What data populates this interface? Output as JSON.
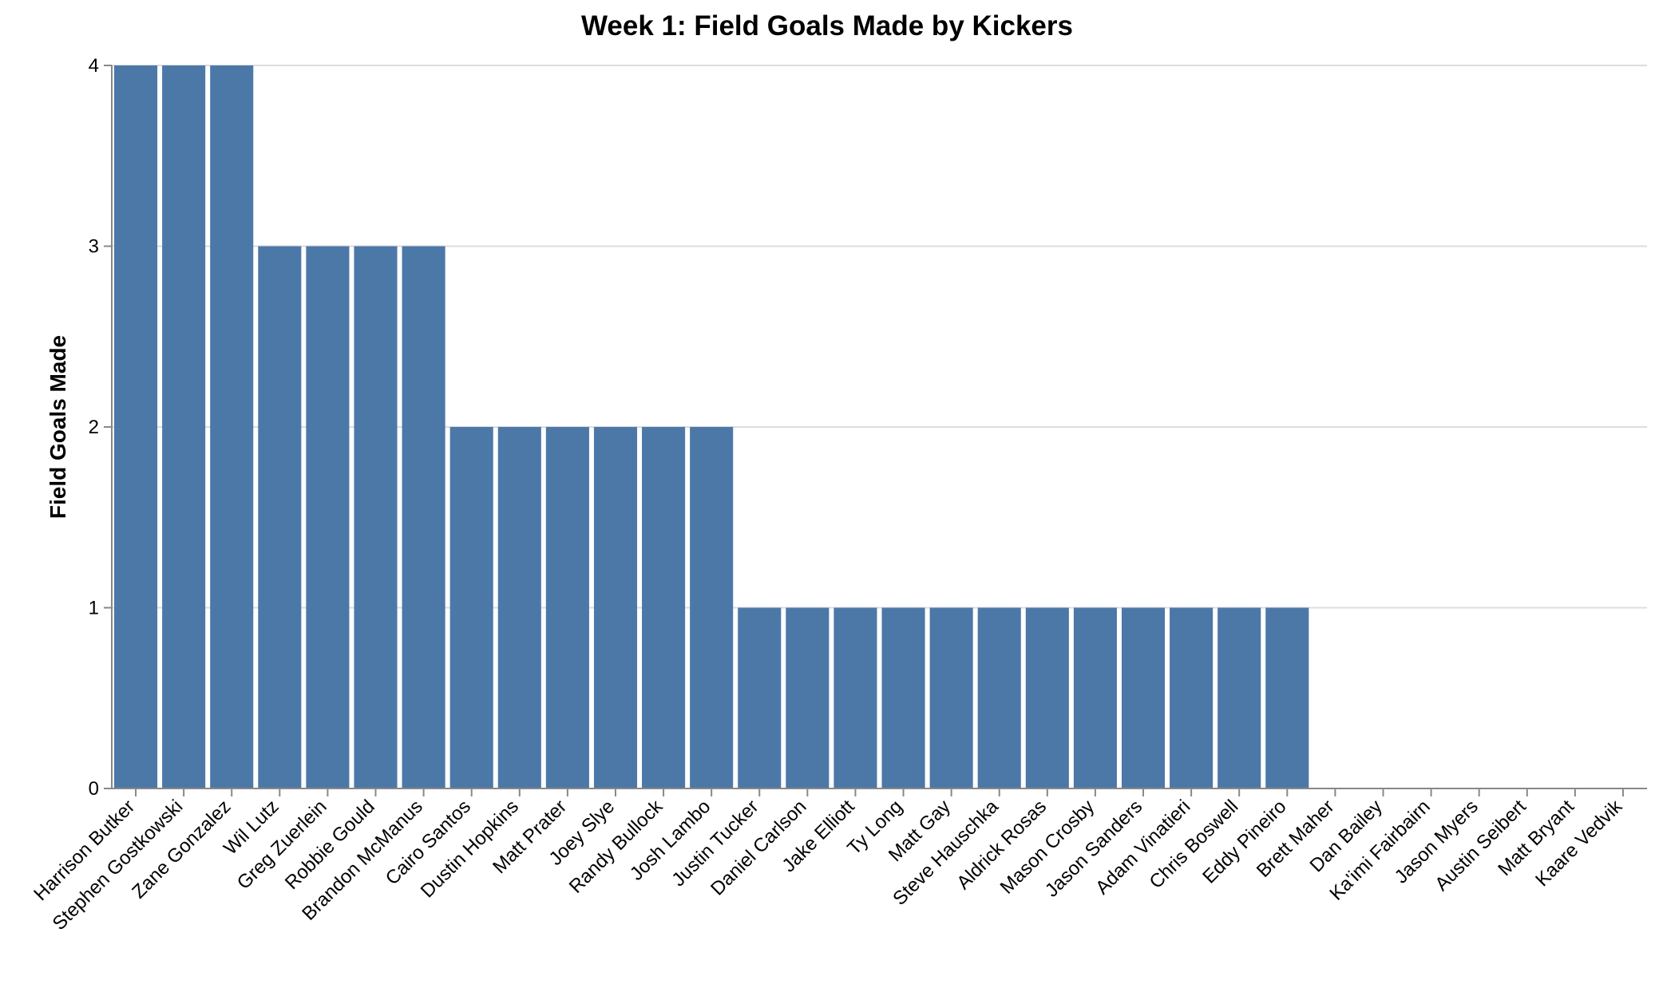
{
  "chart_data": {
    "type": "bar",
    "title": "Week 1: Field Goals Made by Kickers",
    "xlabel": "",
    "ylabel": "Field Goals Made",
    "ylim": [
      0,
      4
    ],
    "yticks": [
      0,
      1,
      2,
      3,
      4
    ],
    "grid": true,
    "bar_color": "#4c78a8",
    "categories": [
      "Harrison Butker",
      "Stephen Gostkowski",
      "Zane Gonzalez",
      "Wil Lutz",
      "Greg Zuerlein",
      "Robbie Gould",
      "Brandon McManus",
      "Cairo Santos",
      "Dustin Hopkins",
      "Matt Prater",
      "Joey Slye",
      "Randy Bullock",
      "Josh Lambo",
      "Justin Tucker",
      "Daniel Carlson",
      "Jake Elliott",
      "Ty Long",
      "Matt Gay",
      "Steve Hauschka",
      "Aldrick Rosas",
      "Mason Crosby",
      "Jason Sanders",
      "Adam Vinatieri",
      "Chris Boswell",
      "Eddy Pineiro",
      "Brett Maher",
      "Dan Bailey",
      "Ka'imi Fairbairn",
      "Jason Myers",
      "Austin Seibert",
      "Matt Bryant",
      "Kaare Vedvik"
    ],
    "values": [
      4,
      4,
      4,
      3,
      3,
      3,
      3,
      2,
      2,
      2,
      2,
      2,
      2,
      1,
      1,
      1,
      1,
      1,
      1,
      1,
      1,
      1,
      1,
      1,
      1,
      0,
      0,
      0,
      0,
      0,
      0,
      0
    ]
  }
}
